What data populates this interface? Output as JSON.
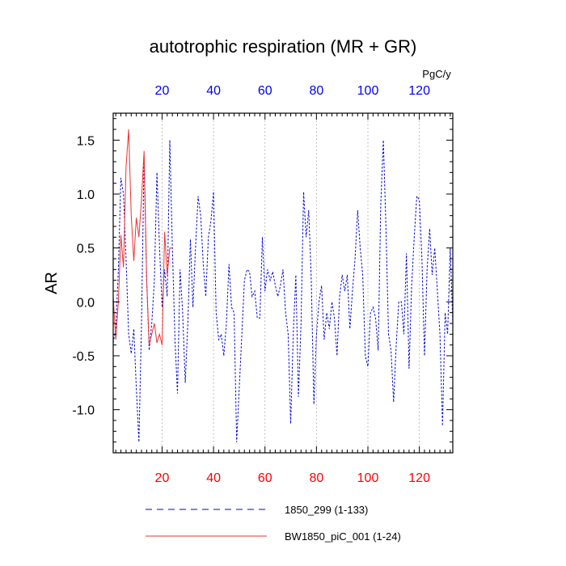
{
  "chart_data": {
    "type": "line",
    "title": "autotrophic respiration (MR + GR)",
    "units_label": "PgC/y",
    "ylabel": "AR",
    "xlim": [
      1,
      133
    ],
    "ylim": [
      -1.4,
      1.75
    ],
    "x_ticks": [
      20,
      40,
      60,
      80,
      100,
      120
    ],
    "x_tick_labels": [
      "20",
      "40",
      "60",
      "80",
      "100",
      "120"
    ],
    "y_ticks": [
      1.5,
      1.0,
      0.5,
      0.0,
      -0.5,
      -1.0
    ],
    "y_tick_labels": [
      "1.5",
      "1.0",
      "0.5",
      "0.0",
      "-0.5",
      "-1.0"
    ],
    "grid": "vertical dotted at major x ticks",
    "colors": {
      "top_axis": "#0000ff",
      "bottom_axis": "#ff0000",
      "series_1850": "#0000dd",
      "series_bw": "#ee3333"
    },
    "series": [
      {
        "name": "1850_299 (1-133)",
        "style": "dashed",
        "x": [
          1,
          2,
          3,
          4,
          5,
          6,
          7,
          8,
          9,
          10,
          11,
          12,
          13,
          14,
          15,
          16,
          17,
          18,
          19,
          20,
          21,
          22,
          23,
          24,
          25,
          26,
          27,
          28,
          29,
          30,
          31,
          32,
          33,
          34,
          35,
          36,
          37,
          38,
          39,
          40,
          41,
          42,
          43,
          44,
          45,
          46,
          47,
          48,
          49,
          50,
          51,
          52,
          53,
          54,
          55,
          56,
          57,
          58,
          59,
          60,
          61,
          62,
          63,
          64,
          65,
          66,
          67,
          68,
          69,
          70,
          71,
          72,
          73,
          74,
          75,
          76,
          77,
          78,
          79,
          80,
          81,
          82,
          83,
          84,
          85,
          86,
          87,
          88,
          89,
          90,
          91,
          92,
          93,
          94,
          95,
          96,
          97,
          98,
          99,
          100,
          101,
          102,
          103,
          104,
          105,
          106,
          107,
          108,
          109,
          110,
          111,
          112,
          113,
          114,
          115,
          116,
          117,
          118,
          119,
          120,
          121,
          122,
          123,
          124,
          125,
          126,
          127,
          128,
          129,
          130,
          131,
          132,
          133
        ],
        "values": [
          -0.38,
          -0.25,
          0.3,
          1.15,
          1.0,
          0.4,
          -0.3,
          -0.48,
          -0.25,
          -0.8,
          -1.3,
          -0.2,
          1.35,
          0.2,
          -0.45,
          -0.2,
          0.2,
          1.2,
          0.5,
          -0.05,
          0.3,
          0.05,
          1.5,
          0.5,
          -0.35,
          -0.85,
          0.3,
          -0.1,
          -0.75,
          -0.2,
          0.58,
          -0.05,
          0.5,
          0.98,
          0.8,
          0.35,
          0.05,
          0.6,
          0.75,
          1.02,
          -0.1,
          -0.35,
          -0.3,
          -0.5,
          -0.2,
          0.35,
          -0.05,
          -0.1,
          -1.3,
          -0.8,
          -0.3,
          0.2,
          0.3,
          0.28,
          0.05,
          0.1,
          -0.15,
          -0.15,
          0.6,
          0.1,
          0.3,
          0.2,
          0.28,
          0.15,
          0.05,
          0.15,
          0.3,
          -0.1,
          -0.3,
          -1.13,
          -0.3,
          0.25,
          -0.88,
          -0.2,
          1.02,
          0.6,
          0.85,
          0.2,
          -0.95,
          -0.3,
          0.0,
          0.15,
          -0.35,
          -0.1,
          -0.25,
          0.0,
          -0.15,
          -0.5,
          0.05,
          0.25,
          0.1,
          0.25,
          -0.25,
          0.1,
          0.4,
          0.85,
          0.5,
          0.25,
          -0.5,
          -0.6,
          -0.1,
          -0.05,
          -0.15,
          -0.45,
          0.9,
          1.5,
          0.7,
          -0.3,
          -0.45,
          -0.93,
          -0.4,
          0.0,
          0.0,
          -0.3,
          0.45,
          -0.62,
          0.15,
          0.6,
          0.98,
          0.95,
          0.4,
          -0.5,
          0.3,
          0.68,
          0.25,
          0.5,
          0.1,
          -0.3,
          -1.15,
          -0.1,
          -0.3,
          0.5,
          -0.2
        ],
        "color": "#0000dd"
      },
      {
        "name": "BW1850_piC_001 (1-24)",
        "style": "solid",
        "x": [
          1,
          2,
          3,
          4,
          5,
          6,
          7,
          8,
          9,
          10,
          11,
          12,
          13,
          14,
          15,
          16,
          17,
          18,
          19,
          20,
          21,
          22,
          23,
          24
        ],
        "values": [
          0.05,
          -0.35,
          0.0,
          0.62,
          0.32,
          1.25,
          1.6,
          0.8,
          0.38,
          0.78,
          0.6,
          0.95,
          1.4,
          0.2,
          -0.4,
          -0.3,
          -0.2,
          -0.38,
          -0.3,
          -0.4,
          0.65,
          0.25,
          0.5,
          0.5
        ],
        "color": "#ee3333"
      }
    ],
    "legend": [
      {
        "label": "1850_299 (1-133)",
        "style": "dashed",
        "color": "#0000dd"
      },
      {
        "label": "BW1850_piC_001 (1-24)",
        "style": "solid",
        "color": "#ee3333"
      }
    ]
  }
}
